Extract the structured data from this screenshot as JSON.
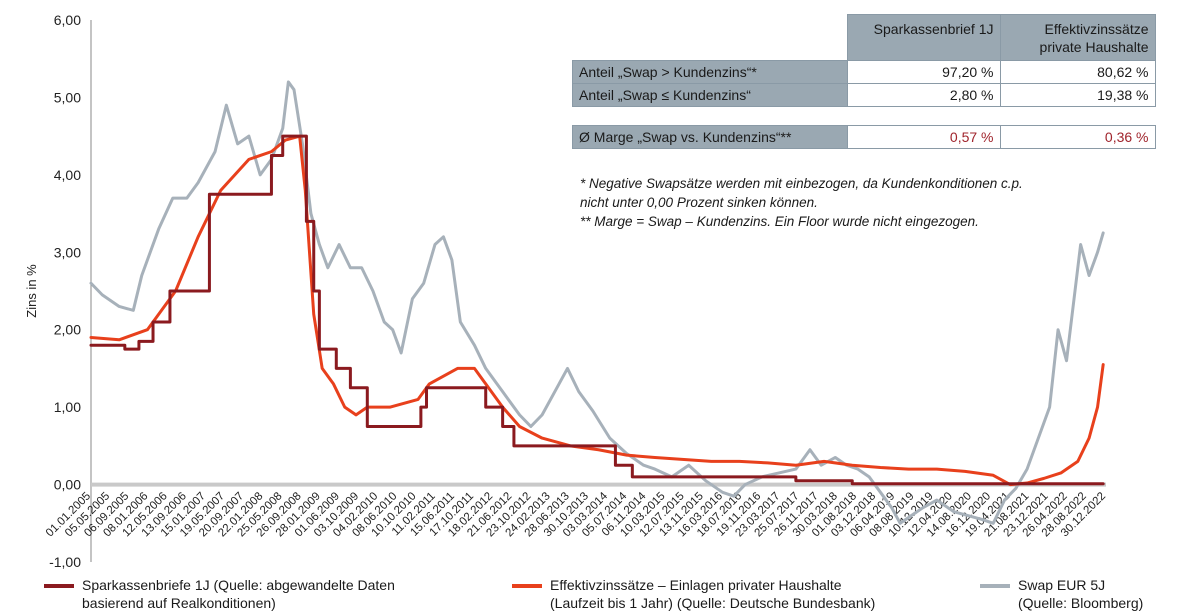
{
  "chart_data": {
    "type": "line",
    "ylabel": "Zins in %",
    "ylim": [
      -1,
      6
    ],
    "y_ticks": [
      "6,00",
      "5,00",
      "4,00",
      "3,00",
      "2,00",
      "1,00",
      "0,00",
      "-1,00"
    ],
    "x_ticks": [
      "01.01.2005",
      "05.05.2005",
      "06.09.2005",
      "08.01.2006",
      "12.05.2006",
      "13.09.2006",
      "15.01.2007",
      "19.05.2007",
      "20.09.2007",
      "22.01.2008",
      "25.05.2008",
      "26.09.2008",
      "28.01.2009",
      "01.06.2009",
      "03.10.2009",
      "04.02.2010",
      "08.06.2010",
      "10.10.2010",
      "11.02.2011",
      "15.06.2011",
      "17.10.2011",
      "18.02.2012",
      "21.06.2012",
      "23.10.2012",
      "24.02.2013",
      "28.06.2013",
      "30.10.2013",
      "03.03.2014",
      "05.07.2014",
      "06.11.2014",
      "10.03.2015",
      "12.07.2015",
      "13.11.2015",
      "16.03.2016",
      "18.07.2016",
      "19.11.2016",
      "23.03.2017",
      "25.07.2017",
      "26.11.2017",
      "30.03.2018",
      "01.08.2018",
      "03.12.2018",
      "06.04.2019",
      "08.08.2019",
      "10.12.2019",
      "12.04.2020",
      "14.08.2020",
      "16.12.2020",
      "19.04.2021",
      "21.08.2021",
      "23.12.2021",
      "26.04.2022",
      "28.08.2022",
      "30.12.2022"
    ],
    "series": [
      {
        "name": "Sparkassenbriefe 1J",
        "color": "#8b1a1f",
        "points": [
          [
            2005.0,
            1.8
          ],
          [
            2005.6,
            1.75
          ],
          [
            2005.85,
            1.85
          ],
          [
            2006.1,
            2.1
          ],
          [
            2006.4,
            2.5
          ],
          [
            2007.0,
            2.5
          ],
          [
            2007.1,
            3.75
          ],
          [
            2008.0,
            3.75
          ],
          [
            2008.2,
            4.25
          ],
          [
            2008.4,
            4.5
          ],
          [
            2008.7,
            4.5
          ],
          [
            2008.82,
            3.4
          ],
          [
            2008.95,
            2.5
          ],
          [
            2009.05,
            1.75
          ],
          [
            2009.3,
            1.75
          ],
          [
            2009.35,
            1.5
          ],
          [
            2009.6,
            1.25
          ],
          [
            2009.85,
            1.25
          ],
          [
            2009.9,
            0.75
          ],
          [
            2010.8,
            0.75
          ],
          [
            2010.85,
            1.0
          ],
          [
            2010.95,
            1.25
          ],
          [
            2011.8,
            1.25
          ],
          [
            2012.0,
            1.0
          ],
          [
            2012.3,
            0.75
          ],
          [
            2012.5,
            0.5
          ],
          [
            2014.0,
            0.5
          ],
          [
            2014.3,
            0.25
          ],
          [
            2014.6,
            0.1
          ],
          [
            2016.0,
            0.1
          ],
          [
            2017.5,
            0.05
          ],
          [
            2018.5,
            0.01
          ],
          [
            2022.6,
            0.01
          ],
          [
            2022.95,
            0.01
          ]
        ]
      },
      {
        "name": "Effektivzinssätze – Einlagen privater Haushalte",
        "color": "#e8401c",
        "points": [
          [
            2005.0,
            1.9
          ],
          [
            2005.5,
            1.87
          ],
          [
            2006.0,
            2.0
          ],
          [
            2006.5,
            2.5
          ],
          [
            2006.9,
            3.2
          ],
          [
            2007.3,
            3.8
          ],
          [
            2007.8,
            4.2
          ],
          [
            2008.2,
            4.3
          ],
          [
            2008.45,
            4.45
          ],
          [
            2008.7,
            4.5
          ],
          [
            2008.8,
            3.8
          ],
          [
            2008.95,
            2.2
          ],
          [
            2009.1,
            1.5
          ],
          [
            2009.3,
            1.3
          ],
          [
            2009.5,
            1.0
          ],
          [
            2009.7,
            0.9
          ],
          [
            2009.9,
            1.0
          ],
          [
            2010.3,
            1.0
          ],
          [
            2010.8,
            1.1
          ],
          [
            2011.0,
            1.3
          ],
          [
            2011.5,
            1.5
          ],
          [
            2011.8,
            1.5
          ],
          [
            2012.0,
            1.3
          ],
          [
            2012.3,
            1.0
          ],
          [
            2012.6,
            0.75
          ],
          [
            2013.0,
            0.6
          ],
          [
            2013.5,
            0.5
          ],
          [
            2014.0,
            0.45
          ],
          [
            2014.5,
            0.38
          ],
          [
            2015.0,
            0.35
          ],
          [
            2016.0,
            0.3
          ],
          [
            2016.5,
            0.3
          ],
          [
            2017.0,
            0.28
          ],
          [
            2017.5,
            0.25
          ],
          [
            2018.0,
            0.3
          ],
          [
            2018.5,
            0.25
          ],
          [
            2019.0,
            0.22
          ],
          [
            2019.5,
            0.2
          ],
          [
            2020.0,
            0.2
          ],
          [
            2020.5,
            0.17
          ],
          [
            2021.0,
            0.12
          ],
          [
            2021.3,
            0.0
          ],
          [
            2021.6,
            0.02
          ],
          [
            2021.9,
            0.08
          ],
          [
            2022.2,
            0.15
          ],
          [
            2022.5,
            0.3
          ],
          [
            2022.7,
            0.6
          ],
          [
            2022.85,
            1.0
          ],
          [
            2022.95,
            1.55
          ]
        ]
      },
      {
        "name": "Swap EUR 5J",
        "color": "#a7b1ba",
        "points": [
          [
            2005.0,
            2.6
          ],
          [
            2005.2,
            2.45
          ],
          [
            2005.5,
            2.3
          ],
          [
            2005.75,
            2.25
          ],
          [
            2005.9,
            2.7
          ],
          [
            2006.2,
            3.3
          ],
          [
            2006.45,
            3.7
          ],
          [
            2006.7,
            3.7
          ],
          [
            2006.9,
            3.9
          ],
          [
            2007.2,
            4.3
          ],
          [
            2007.4,
            4.9
          ],
          [
            2007.6,
            4.4
          ],
          [
            2007.8,
            4.5
          ],
          [
            2008.0,
            4.0
          ],
          [
            2008.2,
            4.2
          ],
          [
            2008.4,
            4.6
          ],
          [
            2008.5,
            5.2
          ],
          [
            2008.6,
            5.1
          ],
          [
            2008.75,
            4.4
          ],
          [
            2008.9,
            3.5
          ],
          [
            2009.05,
            3.1
          ],
          [
            2009.2,
            2.8
          ],
          [
            2009.4,
            3.1
          ],
          [
            2009.6,
            2.8
          ],
          [
            2009.8,
            2.8
          ],
          [
            2010.0,
            2.5
          ],
          [
            2010.2,
            2.1
          ],
          [
            2010.35,
            2.0
          ],
          [
            2010.5,
            1.7
          ],
          [
            2010.7,
            2.4
          ],
          [
            2010.9,
            2.6
          ],
          [
            2011.1,
            3.1
          ],
          [
            2011.25,
            3.2
          ],
          [
            2011.4,
            2.9
          ],
          [
            2011.55,
            2.1
          ],
          [
            2011.8,
            1.8
          ],
          [
            2012.0,
            1.5
          ],
          [
            2012.3,
            1.2
          ],
          [
            2012.6,
            0.9
          ],
          [
            2012.8,
            0.75
          ],
          [
            2013.0,
            0.9
          ],
          [
            2013.3,
            1.3
          ],
          [
            2013.45,
            1.5
          ],
          [
            2013.65,
            1.2
          ],
          [
            2013.9,
            0.95
          ],
          [
            2014.2,
            0.6
          ],
          [
            2014.5,
            0.4
          ],
          [
            2014.8,
            0.25
          ],
          [
            2015.0,
            0.2
          ],
          [
            2015.3,
            0.1
          ],
          [
            2015.6,
            0.25
          ],
          [
            2015.9,
            0.05
          ],
          [
            2016.2,
            -0.1
          ],
          [
            2016.4,
            -0.15
          ],
          [
            2016.6,
            0.0
          ],
          [
            2016.9,
            0.1
          ],
          [
            2017.2,
            0.15
          ],
          [
            2017.5,
            0.2
          ],
          [
            2017.75,
            0.45
          ],
          [
            2017.95,
            0.25
          ],
          [
            2018.2,
            0.35
          ],
          [
            2018.4,
            0.25
          ],
          [
            2018.6,
            0.2
          ],
          [
            2018.8,
            0.1
          ],
          [
            2019.0,
            -0.1
          ],
          [
            2019.2,
            -0.3
          ],
          [
            2019.35,
            -0.5
          ],
          [
            2019.55,
            -0.4
          ],
          [
            2019.75,
            -0.3
          ],
          [
            2020.0,
            -0.2
          ],
          [
            2020.3,
            -0.35
          ],
          [
            2020.55,
            -0.4
          ],
          [
            2020.8,
            -0.45
          ],
          [
            2021.0,
            -0.5
          ],
          [
            2021.2,
            -0.2
          ],
          [
            2021.4,
            -0.05
          ],
          [
            2021.6,
            0.2
          ],
          [
            2021.8,
            0.6
          ],
          [
            2022.0,
            1.0
          ],
          [
            2022.15,
            2.0
          ],
          [
            2022.3,
            1.6
          ],
          [
            2022.45,
            2.5
          ],
          [
            2022.55,
            3.1
          ],
          [
            2022.7,
            2.7
          ],
          [
            2022.85,
            3.0
          ],
          [
            2022.95,
            3.25
          ]
        ]
      }
    ]
  },
  "table": {
    "col1": "Sparkassenbrief 1J",
    "col2_line1": "Effektivzinssätze",
    "col2_line2": "private Haushalte",
    "row1_label": "Anteil „Swap > Kundenzins“*",
    "row1_v1": "97,20 %",
    "row1_v2": "80,62 %",
    "row2_label": "Anteil „Swap ≤ Kundenzins“",
    "row2_v1": "2,80 %",
    "row2_v2": "19,38 %",
    "row3_label": "Ø Marge „Swap vs. Kundenzins“**",
    "row3_v1": "0,57 %",
    "row3_v2": "0,36 %",
    "highlight_color": "#a0242c"
  },
  "notes": {
    "n1_line1": "*   Negative Swapsätze werden mit einbezogen, da Kundenkonditionen c.p.",
    "n1_line2": "     nicht unter 0,00 Prozent sinken können.",
    "n2": "** Marge = Swap – Kundenzins. Ein Floor wurde nicht eingezogen."
  },
  "legend": {
    "l1_line1": "Sparkassenbriefe 1J (Quelle: abgewandelte Daten",
    "l1_line2": "basierend auf Realkonditionen)",
    "l2_line1": "Effektivzinssätze – Einlagen privater Haushalte",
    "l2_line2": "(Laufzeit bis 1 Jahr) (Quelle: Deutsche Bundesbank)",
    "l3_line1": "Swap EUR 5J",
    "l3_line2": "(Quelle: Bloomberg)"
  }
}
